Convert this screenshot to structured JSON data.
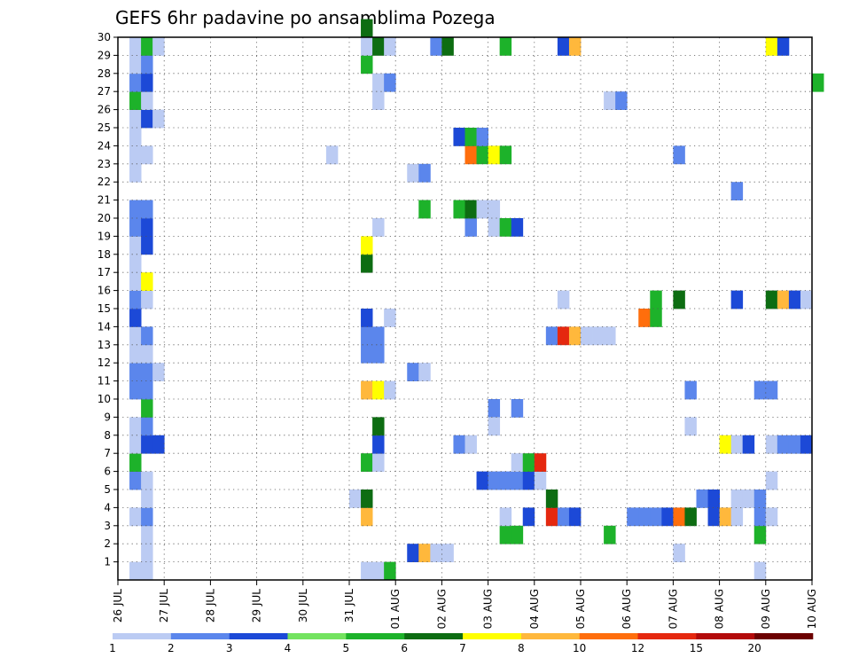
{
  "chart_data": {
    "type": "heatmap",
    "title": "GEFS 6hr padavine po ansamblima Pozega",
    "x_start_date": "2024-07-26",
    "x_end_date": "2024-08-10",
    "x_tick_labels": [
      "26 JUL",
      "27 JUL",
      "28 JUL",
      "29 JUL",
      "30 JUL",
      "31 JUL",
      "01 AUG",
      "02 AUG",
      "03 AUG",
      "04 AUG",
      "05 AUG",
      "06 AUG",
      "07 AUG",
      "08 AUG",
      "09 AUG",
      "10 AUG"
    ],
    "y_tick_labels": [
      1,
      2,
      3,
      4,
      5,
      6,
      7,
      8,
      9,
      10,
      11,
      12,
      13,
      14,
      15,
      16,
      17,
      18,
      19,
      20,
      21,
      22,
      23,
      24,
      25,
      26,
      27,
      28,
      29,
      30
    ],
    "ylim": [
      0,
      30
    ],
    "grid": true,
    "time_step_hours": 6,
    "colorbar": {
      "labels": [
        "1",
        "2",
        "3",
        "4",
        "5",
        "6",
        "7",
        "8",
        "10",
        "12",
        "15",
        "20"
      ],
      "colors": [
        "#bbcbf3",
        "#5b86ec",
        "#1c49d7",
        "#73e35f",
        "#1db22a",
        "#0d6d12",
        "#ffff00",
        "#ffb83c",
        "#ff6e0c",
        "#e5280f",
        "#b30a0a",
        "#6c0000"
      ]
    },
    "cell_value_note": "x = first hour of the 6h step (YYYY-MM-DD HH), y = ensemble member, c = colour class index into colorbar.colors",
    "cells": [
      {
        "x": "2024-07-26 06",
        "y": 0,
        "c": 0
      },
      {
        "x": "2024-07-26 06",
        "y": 3,
        "c": 0
      },
      {
        "x": "2024-07-26 06",
        "y": 5,
        "c": 1
      },
      {
        "x": "2024-07-26 06",
        "y": 6,
        "c": 4
      },
      {
        "x": "2024-07-26 06",
        "y": 7,
        "c": 0
      },
      {
        "x": "2024-07-26 06",
        "y": 8,
        "c": 0
      },
      {
        "x": "2024-07-26 06",
        "y": 10,
        "c": 1
      },
      {
        "x": "2024-07-26 06",
        "y": 11,
        "c": 1
      },
      {
        "x": "2024-07-26 06",
        "y": 12,
        "c": 0
      },
      {
        "x": "2024-07-26 06",
        "y": 13,
        "c": 0
      },
      {
        "x": "2024-07-26 06",
        "y": 14,
        "c": 2
      },
      {
        "x": "2024-07-26 06",
        "y": 15,
        "c": 1
      },
      {
        "x": "2024-07-26 06",
        "y": 16,
        "c": 0
      },
      {
        "x": "2024-07-26 06",
        "y": 17,
        "c": 0
      },
      {
        "x": "2024-07-26 06",
        "y": 18,
        "c": 0
      },
      {
        "x": "2024-07-26 06",
        "y": 19,
        "c": 1
      },
      {
        "x": "2024-07-26 06",
        "y": 20,
        "c": 1
      },
      {
        "x": "2024-07-26 06",
        "y": 22,
        "c": 0
      },
      {
        "x": "2024-07-26 06",
        "y": 23,
        "c": 0
      },
      {
        "x": "2024-07-26 06",
        "y": 24,
        "c": 0
      },
      {
        "x": "2024-07-26 06",
        "y": 25,
        "c": 0
      },
      {
        "x": "2024-07-26 06",
        "y": 26,
        "c": 4
      },
      {
        "x": "2024-07-26 06",
        "y": 27,
        "c": 1
      },
      {
        "x": "2024-07-26 06",
        "y": 28,
        "c": 0
      },
      {
        "x": "2024-07-26 06",
        "y": 29,
        "c": 0
      },
      {
        "x": "2024-07-26 12",
        "y": 0,
        "c": 0
      },
      {
        "x": "2024-07-26 12",
        "y": 1,
        "c": 0
      },
      {
        "x": "2024-07-26 12",
        "y": 2,
        "c": 0
      },
      {
        "x": "2024-07-26 12",
        "y": 3,
        "c": 1
      },
      {
        "x": "2024-07-26 12",
        "y": 4,
        "c": 0
      },
      {
        "x": "2024-07-26 12",
        "y": 5,
        "c": 0
      },
      {
        "x": "2024-07-26 12",
        "y": 7,
        "c": 2
      },
      {
        "x": "2024-07-26 12",
        "y": 8,
        "c": 1
      },
      {
        "x": "2024-07-26 12",
        "y": 9,
        "c": 4
      },
      {
        "x": "2024-07-26 12",
        "y": 10,
        "c": 1
      },
      {
        "x": "2024-07-26 12",
        "y": 11,
        "c": 1
      },
      {
        "x": "2024-07-26 12",
        "y": 12,
        "c": 0
      },
      {
        "x": "2024-07-26 12",
        "y": 13,
        "c": 1
      },
      {
        "x": "2024-07-26 12",
        "y": 15,
        "c": 0
      },
      {
        "x": "2024-07-26 12",
        "y": 16,
        "c": 6
      },
      {
        "x": "2024-07-26 12",
        "y": 18,
        "c": 2
      },
      {
        "x": "2024-07-26 12",
        "y": 19,
        "c": 2
      },
      {
        "x": "2024-07-26 12",
        "y": 20,
        "c": 1
      },
      {
        "x": "2024-07-26 12",
        "y": 23,
        "c": 0
      },
      {
        "x": "2024-07-26 12",
        "y": 25,
        "c": 2
      },
      {
        "x": "2024-07-26 12",
        "y": 26,
        "c": 0
      },
      {
        "x": "2024-07-26 12",
        "y": 27,
        "c": 2
      },
      {
        "x": "2024-07-26 12",
        "y": 28,
        "c": 1
      },
      {
        "x": "2024-07-26 12",
        "y": 29,
        "c": 4
      },
      {
        "x": "2024-07-26 18",
        "y": 7,
        "c": 2
      },
      {
        "x": "2024-07-26 18",
        "y": 11,
        "c": 0
      },
      {
        "x": "2024-07-26 18",
        "y": 25,
        "c": 0
      },
      {
        "x": "2024-07-26 18",
        "y": 29,
        "c": 0
      },
      {
        "x": "2024-07-30 12",
        "y": 23,
        "c": 0
      },
      {
        "x": "2024-07-31 00",
        "y": 4,
        "c": 0
      },
      {
        "x": "2024-07-31 06",
        "y": 0,
        "c": 0
      },
      {
        "x": "2024-07-31 06",
        "y": 3,
        "c": 7
      },
      {
        "x": "2024-07-31 06",
        "y": 4,
        "c": 5
      },
      {
        "x": "2024-07-31 06",
        "y": 6,
        "c": 4
      },
      {
        "x": "2024-07-31 06",
        "y": 10,
        "c": 7
      },
      {
        "x": "2024-07-31 06",
        "y": 12,
        "c": 1
      },
      {
        "x": "2024-07-31 06",
        "y": 13,
        "c": 1
      },
      {
        "x": "2024-07-31 06",
        "y": 14,
        "c": 2
      },
      {
        "x": "2024-07-31 06",
        "y": 17,
        "c": 5
      },
      {
        "x": "2024-07-31 06",
        "y": 18,
        "c": 6
      },
      {
        "x": "2024-07-31 06",
        "y": 28,
        "c": 4
      },
      {
        "x": "2024-07-31 06",
        "y": 29,
        "c": 0
      },
      {
        "x": "2024-07-31 06",
        "y": 30,
        "c": 5
      },
      {
        "x": "2024-07-31 12",
        "y": 0,
        "c": 0
      },
      {
        "x": "2024-07-31 12",
        "y": 6,
        "c": 0
      },
      {
        "x": "2024-07-31 12",
        "y": 7,
        "c": 2
      },
      {
        "x": "2024-07-31 12",
        "y": 8,
        "c": 5
      },
      {
        "x": "2024-07-31 12",
        "y": 10,
        "c": 6
      },
      {
        "x": "2024-07-31 12",
        "y": 12,
        "c": 1
      },
      {
        "x": "2024-07-31 12",
        "y": 13,
        "c": 1
      },
      {
        "x": "2024-07-31 12",
        "y": 19,
        "c": 0
      },
      {
        "x": "2024-07-31 12",
        "y": 26,
        "c": 0
      },
      {
        "x": "2024-07-31 12",
        "y": 27,
        "c": 0
      },
      {
        "x": "2024-07-31 12",
        "y": 29,
        "c": 5
      },
      {
        "x": "2024-07-31 18",
        "y": 0,
        "c": 4
      },
      {
        "x": "2024-07-31 18",
        "y": 10,
        "c": 0
      },
      {
        "x": "2024-07-31 18",
        "y": 14,
        "c": 0
      },
      {
        "x": "2024-07-31 18",
        "y": 27,
        "c": 1
      },
      {
        "x": "2024-07-31 18",
        "y": 29,
        "c": 0
      },
      {
        "x": "2024-08-01 06",
        "y": 1,
        "c": 2
      },
      {
        "x": "2024-08-01 06",
        "y": 11,
        "c": 1
      },
      {
        "x": "2024-08-01 06",
        "y": 22,
        "c": 0
      },
      {
        "x": "2024-08-01 12",
        "y": 1,
        "c": 7
      },
      {
        "x": "2024-08-01 12",
        "y": 11,
        "c": 0
      },
      {
        "x": "2024-08-01 12",
        "y": 20,
        "c": 4
      },
      {
        "x": "2024-08-01 12",
        "y": 22,
        "c": 1
      },
      {
        "x": "2024-08-01 18",
        "y": 1,
        "c": 0
      },
      {
        "x": "2024-08-01 18",
        "y": 29,
        "c": 1
      },
      {
        "x": "2024-08-02 00",
        "y": 1,
        "c": 0
      },
      {
        "x": "2024-08-02 00",
        "y": 29,
        "c": 5
      },
      {
        "x": "2024-08-02 06",
        "y": 7,
        "c": 1
      },
      {
        "x": "2024-08-02 06",
        "y": 20,
        "c": 4
      },
      {
        "x": "2024-08-02 06",
        "y": 24,
        "c": 2
      },
      {
        "x": "2024-08-02 12",
        "y": 7,
        "c": 0
      },
      {
        "x": "2024-08-02 12",
        "y": 19,
        "c": 1
      },
      {
        "x": "2024-08-02 12",
        "y": 20,
        "c": 5
      },
      {
        "x": "2024-08-02 12",
        "y": 23,
        "c": 8
      },
      {
        "x": "2024-08-02 12",
        "y": 24,
        "c": 4
      },
      {
        "x": "2024-08-02 18",
        "y": 5,
        "c": 2
      },
      {
        "x": "2024-08-02 18",
        "y": 20,
        "c": 0
      },
      {
        "x": "2024-08-02 18",
        "y": 23,
        "c": 4
      },
      {
        "x": "2024-08-02 18",
        "y": 24,
        "c": 1
      },
      {
        "x": "2024-08-03 00",
        "y": 5,
        "c": 1
      },
      {
        "x": "2024-08-03 00",
        "y": 9,
        "c": 1
      },
      {
        "x": "2024-08-03 00",
        "y": 8,
        "c": 0
      },
      {
        "x": "2024-08-03 00",
        "y": 19,
        "c": 0
      },
      {
        "x": "2024-08-03 00",
        "y": 20,
        "c": 0
      },
      {
        "x": "2024-08-03 00",
        "y": 23,
        "c": 6
      },
      {
        "x": "2024-08-03 06",
        "y": 2,
        "c": 4
      },
      {
        "x": "2024-08-03 06",
        "y": 3,
        "c": 0
      },
      {
        "x": "2024-08-03 06",
        "y": 5,
        "c": 1
      },
      {
        "x": "2024-08-03 06",
        "y": 19,
        "c": 4
      },
      {
        "x": "2024-08-03 06",
        "y": 23,
        "c": 4
      },
      {
        "x": "2024-08-03 06",
        "y": 29,
        "c": 4
      },
      {
        "x": "2024-08-03 12",
        "y": 2,
        "c": 4
      },
      {
        "x": "2024-08-03 12",
        "y": 5,
        "c": 1
      },
      {
        "x": "2024-08-03 12",
        "y": 6,
        "c": 0
      },
      {
        "x": "2024-08-03 12",
        "y": 9,
        "c": 1
      },
      {
        "x": "2024-08-03 12",
        "y": 19,
        "c": 2
      },
      {
        "x": "2024-08-03 18",
        "y": 3,
        "c": 2
      },
      {
        "x": "2024-08-03 18",
        "y": 5,
        "c": 2
      },
      {
        "x": "2024-08-03 18",
        "y": 6,
        "c": 4
      },
      {
        "x": "2024-08-04 00",
        "y": 5,
        "c": 0
      },
      {
        "x": "2024-08-04 00",
        "y": 6,
        "c": 9
      },
      {
        "x": "2024-08-04 06",
        "y": 3,
        "c": 9
      },
      {
        "x": "2024-08-04 06",
        "y": 4,
        "c": 5
      },
      {
        "x": "2024-08-04 06",
        "y": 13,
        "c": 1
      },
      {
        "x": "2024-08-04 12",
        "y": 3,
        "c": 1
      },
      {
        "x": "2024-08-04 12",
        "y": 13,
        "c": 9
      },
      {
        "x": "2024-08-04 12",
        "y": 15,
        "c": 0
      },
      {
        "x": "2024-08-04 12",
        "y": 29,
        "c": 2
      },
      {
        "x": "2024-08-04 18",
        "y": 3,
        "c": 2
      },
      {
        "x": "2024-08-04 18",
        "y": 13,
        "c": 7
      },
      {
        "x": "2024-08-04 18",
        "y": 29,
        "c": 7
      },
      {
        "x": "2024-08-05 00",
        "y": 13,
        "c": 0
      },
      {
        "x": "2024-08-05 06",
        "y": 13,
        "c": 0
      },
      {
        "x": "2024-08-05 12",
        "y": 2,
        "c": 4
      },
      {
        "x": "2024-08-05 12",
        "y": 13,
        "c": 0
      },
      {
        "x": "2024-08-05 12",
        "y": 26,
        "c": 0
      },
      {
        "x": "2024-08-05 18",
        "y": 26,
        "c": 1
      },
      {
        "x": "2024-08-06 00",
        "y": 3,
        "c": 1
      },
      {
        "x": "2024-08-06 06",
        "y": 3,
        "c": 1
      },
      {
        "x": "2024-08-06 06",
        "y": 14,
        "c": 8
      },
      {
        "x": "2024-08-06 12",
        "y": 3,
        "c": 1
      },
      {
        "x": "2024-08-06 12",
        "y": 14,
        "c": 4
      },
      {
        "x": "2024-08-06 12",
        "y": 15,
        "c": 4
      },
      {
        "x": "2024-08-06 18",
        "y": 3,
        "c": 2
      },
      {
        "x": "2024-08-07 00",
        "y": 3,
        "c": 8
      },
      {
        "x": "2024-08-07 00",
        "y": 15,
        "c": 5
      },
      {
        "x": "2024-08-07 00",
        "y": 23,
        "c": 1
      },
      {
        "x": "2024-08-07 00",
        "y": 1,
        "c": 0
      },
      {
        "x": "2024-08-07 06",
        "y": 3,
        "c": 5
      },
      {
        "x": "2024-08-07 06",
        "y": 8,
        "c": 0
      },
      {
        "x": "2024-08-07 06",
        "y": 10,
        "c": 1
      },
      {
        "x": "2024-08-07 12",
        "y": 4,
        "c": 1
      },
      {
        "x": "2024-08-07 18",
        "y": 3,
        "c": 2
      },
      {
        "x": "2024-08-07 18",
        "y": 4,
        "c": 2
      },
      {
        "x": "2024-08-08 00",
        "y": 3,
        "c": 7
      },
      {
        "x": "2024-08-08 00",
        "y": 7,
        "c": 6
      },
      {
        "x": "2024-08-08 06",
        "y": 3,
        "c": 0
      },
      {
        "x": "2024-08-08 06",
        "y": 4,
        "c": 0
      },
      {
        "x": "2024-08-08 06",
        "y": 7,
        "c": 0
      },
      {
        "x": "2024-08-08 06",
        "y": 15,
        "c": 2
      },
      {
        "x": "2024-08-08 06",
        "y": 21,
        "c": 1
      },
      {
        "x": "2024-08-08 12",
        "y": 4,
        "c": 0
      },
      {
        "x": "2024-08-08 12",
        "y": 7,
        "c": 2
      },
      {
        "x": "2024-08-08 18",
        "y": 0,
        "c": 0
      },
      {
        "x": "2024-08-08 18",
        "y": 2,
        "c": 4
      },
      {
        "x": "2024-08-08 18",
        "y": 3,
        "c": 1
      },
      {
        "x": "2024-08-08 18",
        "y": 4,
        "c": 1
      },
      {
        "x": "2024-08-08 18",
        "y": 10,
        "c": 1
      },
      {
        "x": "2024-08-09 00",
        "y": 3,
        "c": 0
      },
      {
        "x": "2024-08-09 00",
        "y": 5,
        "c": 0
      },
      {
        "x": "2024-08-09 00",
        "y": 7,
        "c": 0
      },
      {
        "x": "2024-08-09 00",
        "y": 10,
        "c": 1
      },
      {
        "x": "2024-08-09 00",
        "y": 15,
        "c": 5
      },
      {
        "x": "2024-08-09 00",
        "y": 29,
        "c": 6
      },
      {
        "x": "2024-08-09 06",
        "y": 7,
        "c": 1
      },
      {
        "x": "2024-08-09 06",
        "y": 15,
        "c": 7
      },
      {
        "x": "2024-08-09 06",
        "y": 29,
        "c": 2
      },
      {
        "x": "2024-08-09 12",
        "y": 7,
        "c": 1
      },
      {
        "x": "2024-08-09 12",
        "y": 15,
        "c": 2
      },
      {
        "x": "2024-08-09 18",
        "y": 7,
        "c": 2
      },
      {
        "x": "2024-08-09 18",
        "y": 15,
        "c": 0
      },
      {
        "x": "2024-08-10 00",
        "y": 27,
        "c": 4
      }
    ]
  }
}
